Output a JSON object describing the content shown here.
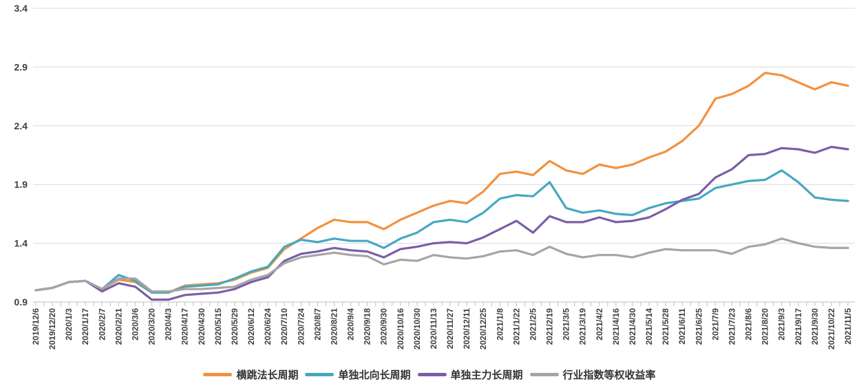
{
  "chart_data": {
    "type": "line",
    "title": "",
    "xlabel": "",
    "ylabel": "",
    "ylim": [
      0.9,
      3.4
    ],
    "yticks": [
      0.9,
      1.4,
      1.9,
      2.4,
      2.9,
      3.4
    ],
    "ytick_labels": [
      "0.9",
      "1.4",
      "1.9",
      "2.4",
      "2.9",
      "3.4"
    ],
    "grid": "horizontal",
    "legend_position": "bottom-center",
    "background_color": "#FFFFFF",
    "gridline_color": "#D9D9D9",
    "axis_line_color": "#BFBFBF",
    "tick_label_color": "#3F3F3F",
    "categories": [
      "2019/12/6",
      "2019/12/20",
      "2020/1/3",
      "2020/1/17",
      "2020/2/7",
      "2020/2/21",
      "2020/3/6",
      "2020/3/20",
      "2020/4/3",
      "2020/4/17",
      "2020/4/30",
      "2020/5/15",
      "2020/5/29",
      "2020/6/12",
      "2020/6/24",
      "2020/7/10",
      "2020/7/24",
      "2020/8/7",
      "2020/8/21",
      "2020/9/4",
      "2020/9/18",
      "2020/9/30",
      "2020/10/16",
      "2020/10/30",
      "2020/11/13",
      "2020/11/27",
      "2020/12/11",
      "2020/12/25",
      "2021/1/8",
      "2021/1/22",
      "2021/2/5",
      "2021/2/19",
      "2021/3/5",
      "2021/3/19",
      "2021/4/2",
      "2021/4/16",
      "2021/4/30",
      "2021/5/14",
      "2021/5/28",
      "2021/6/11",
      "2021/6/25",
      "2021/7/9",
      "2021/7/23",
      "2021/8/6",
      "2021/8/20",
      "2021/9/3",
      "2021/9/17",
      "2021/9/30",
      "2021/10/22",
      "2021/11/5"
    ],
    "series": [
      {
        "name": "横跳法长周期",
        "color": "#F2913E",
        "values": [
          1.0,
          1.02,
          1.07,
          1.08,
          1.01,
          1.09,
          1.07,
          0.98,
          0.98,
          1.04,
          1.05,
          1.06,
          1.09,
          1.15,
          1.19,
          1.35,
          1.44,
          1.53,
          1.6,
          1.58,
          1.58,
          1.52,
          1.6,
          1.66,
          1.72,
          1.76,
          1.74,
          1.84,
          1.99,
          2.01,
          1.98,
          2.1,
          2.02,
          1.99,
          2.07,
          2.04,
          2.07,
          2.13,
          2.18,
          2.27,
          2.4,
          2.63,
          2.67,
          2.74,
          2.85,
          2.83,
          2.77,
          2.71,
          2.77,
          2.74
        ]
      },
      {
        "name": "单独北向长周期",
        "color": "#45A8C1",
        "values": [
          1.0,
          1.02,
          1.07,
          1.08,
          1.01,
          1.13,
          1.08,
          0.98,
          0.98,
          1.03,
          1.04,
          1.05,
          1.1,
          1.16,
          1.2,
          1.37,
          1.43,
          1.41,
          1.44,
          1.42,
          1.42,
          1.36,
          1.44,
          1.49,
          1.58,
          1.6,
          1.58,
          1.66,
          1.78,
          1.81,
          1.8,
          1.92,
          1.7,
          1.66,
          1.68,
          1.65,
          1.64,
          1.7,
          1.74,
          1.76,
          1.78,
          1.87,
          1.9,
          1.93,
          1.94,
          2.02,
          1.92,
          1.79,
          1.77,
          1.76
        ]
      },
      {
        "name": "单独主力长周期",
        "color": "#7B5DA6",
        "values": [
          1.0,
          1.02,
          1.07,
          1.08,
          0.99,
          1.06,
          1.03,
          0.92,
          0.92,
          0.96,
          0.97,
          0.98,
          1.01,
          1.07,
          1.11,
          1.25,
          1.31,
          1.33,
          1.36,
          1.34,
          1.33,
          1.28,
          1.35,
          1.37,
          1.4,
          1.41,
          1.4,
          1.45,
          1.52,
          1.59,
          1.49,
          1.63,
          1.58,
          1.58,
          1.62,
          1.58,
          1.59,
          1.62,
          1.69,
          1.77,
          1.82,
          1.96,
          2.03,
          2.15,
          2.16,
          2.21,
          2.2,
          2.17,
          2.22,
          2.2
        ]
      },
      {
        "name": "行业指数等权收益率",
        "color": "#A5A5A5",
        "values": [
          1.0,
          1.02,
          1.07,
          1.08,
          1.01,
          1.1,
          1.1,
          0.99,
          0.99,
          1.01,
          1.01,
          1.02,
          1.03,
          1.09,
          1.13,
          1.23,
          1.28,
          1.3,
          1.32,
          1.3,
          1.29,
          1.22,
          1.26,
          1.25,
          1.3,
          1.28,
          1.27,
          1.29,
          1.33,
          1.34,
          1.3,
          1.37,
          1.31,
          1.28,
          1.3,
          1.3,
          1.28,
          1.32,
          1.35,
          1.34,
          1.34,
          1.34,
          1.31,
          1.37,
          1.39,
          1.44,
          1.4,
          1.37,
          1.36,
          1.36
        ]
      }
    ]
  }
}
